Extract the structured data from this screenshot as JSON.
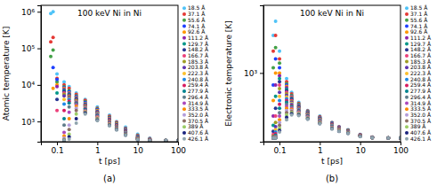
{
  "chart_data": [
    {
      "type": "scatter",
      "title": "100 keV Ni in Ni",
      "annotation": "(a)",
      "x_label": "t [ps]",
      "y_label": "Atomic temperature [K]",
      "log": true,
      "grid": false,
      "legend": "right",
      "marker": "circle",
      "xlim": [
        0.04,
        100
      ],
      "xticks": [
        0.1,
        1,
        10,
        100
      ],
      "ylim": [
        280,
        1500000
      ],
      "yticks": [
        {
          "value": 1000,
          "label": "10³"
        },
        {
          "value": 10000,
          "label": "10⁴"
        },
        {
          "value": 100000,
          "label": "10⁵"
        },
        {
          "value": 1000000,
          "label": "10⁶"
        }
      ],
      "x": [
        0.07,
        0.08,
        0.1,
        0.15,
        0.2,
        0.3,
        0.5,
        1,
        2,
        3,
        5,
        10,
        20,
        50,
        100
      ],
      "series": [
        {
          "name": "18.5 Å",
          "color": "#4fc3f7",
          "values": [
            900000,
            1000000,
            20000,
            12000,
            9000,
            6000,
            4000,
            2500,
            1500,
            1000,
            700,
            450,
            350,
            310,
            300
          ]
        },
        {
          "name": "37.1 Å",
          "color": "#e53935",
          "values": [
            150000,
            200000,
            15000,
            10000,
            8000,
            5500,
            3800,
            2300,
            1400,
            950,
            650,
            420,
            340,
            305,
            300
          ]
        },
        {
          "name": "55.6 Å",
          "color": "#43a047",
          "values": [
            60000,
            90000,
            12000,
            9000,
            7000,
            5000,
            3500,
            2200,
            1300,
            900,
            620,
            400,
            330,
            303,
            300
          ]
        },
        {
          "name": "74.1 Å",
          "color": "#1e40ff",
          "values": [
            null,
            30000,
            14000,
            8500,
            6500,
            4800,
            3300,
            2100,
            1250,
            880,
            600,
            390,
            325,
            302,
            300
          ]
        },
        {
          "name": "92.6 Å",
          "color": "#ff9800",
          "values": [
            null,
            8000,
            10000,
            8000,
            6000,
            4500,
            3100,
            2000,
            1200,
            850,
            580,
            380,
            320,
            301,
            300
          ]
        },
        {
          "name": "111.2 Å",
          "color": "#8e24aa",
          "values": [
            null,
            null,
            9000,
            7500,
            5800,
            4300,
            3000,
            1900,
            1150,
            820,
            560,
            370,
            318,
            301,
            300
          ]
        },
        {
          "name": "129.7 Å",
          "color": "#009688",
          "values": [
            null,
            null,
            6000,
            7000,
            5500,
            4100,
            2900,
            1850,
            1100,
            800,
            540,
            365,
            315,
            300,
            300
          ]
        },
        {
          "name": "148.2 Å",
          "color": "#283593",
          "values": [
            null,
            null,
            4000,
            6500,
            5200,
            4000,
            2800,
            1800,
            1080,
            780,
            530,
            360,
            312,
            300,
            300
          ]
        },
        {
          "name": "166.7 Å",
          "color": "#ec407a",
          "values": [
            null,
            null,
            2000,
            6000,
            5000,
            3800,
            2700,
            1750,
            1050,
            760,
            520,
            355,
            310,
            300,
            300
          ]
        },
        {
          "name": "185.3 Å",
          "color": "#9e9d24",
          "values": [
            null,
            null,
            null,
            5500,
            4800,
            3700,
            2600,
            1700,
            1020,
            740,
            510,
            350,
            308,
            300,
            300
          ]
        },
        {
          "name": "203.8 Å",
          "color": "#5e35b1",
          "values": [
            null,
            null,
            null,
            5000,
            4500,
            3500,
            2500,
            1650,
            1000,
            720,
            500,
            345,
            306,
            300,
            300
          ]
        },
        {
          "name": "222.3 Å",
          "color": "#fbc02d",
          "values": [
            null,
            null,
            null,
            4000,
            4200,
            3400,
            2400,
            1600,
            980,
            700,
            490,
            340,
            305,
            300,
            300
          ]
        },
        {
          "name": "240.8 Å",
          "color": "#1e88e5",
          "values": [
            null,
            null,
            null,
            3000,
            4000,
            3300,
            2300,
            1550,
            960,
            690,
            480,
            338,
            304,
            300,
            300
          ]
        },
        {
          "name": "259.4 Å",
          "color": "#d81b60",
          "values": [
            null,
            null,
            null,
            2000,
            3600,
            3200,
            2200,
            1500,
            940,
            680,
            470,
            335,
            303,
            300,
            300
          ]
        },
        {
          "name": "277.9 Å",
          "color": "#00838f",
          "values": [
            null,
            null,
            null,
            1200,
            3200,
            3100,
            2100,
            1450,
            920,
            670,
            460,
            332,
            302,
            300,
            300
          ]
        },
        {
          "name": "296.4 Å",
          "color": "#607d8b",
          "values": [
            null,
            null,
            null,
            800,
            2500,
            3000,
            2000,
            1400,
            900,
            660,
            455,
            330,
            302,
            300,
            300
          ]
        },
        {
          "name": "314.9 Å",
          "color": "#ab47bc",
          "values": [
            null,
            null,
            null,
            500,
            1800,
            2800,
            1950,
            1350,
            880,
            650,
            450,
            328,
            301,
            300,
            300
          ]
        },
        {
          "name": "333.5 Å",
          "color": "#fb8c00",
          "values": [
            null,
            null,
            null,
            400,
            1200,
            2600,
            1900,
            1300,
            860,
            640,
            445,
            326,
            301,
            300,
            300
          ]
        },
        {
          "name": "352.0 Å",
          "color": "#b39ddb",
          "values": [
            null,
            null,
            null,
            350,
            800,
            2300,
            1850,
            1250,
            840,
            630,
            440,
            324,
            301,
            300,
            300
          ]
        },
        {
          "name": "370.5 Å",
          "color": "#8d6e63",
          "values": [
            null,
            null,
            null,
            320,
            600,
            2000,
            1800,
            1200,
            820,
            620,
            435,
            322,
            300,
            300,
            300
          ]
        },
        {
          "name": "389 Å",
          "color": "#9ccc65",
          "values": [
            null,
            null,
            null,
            310,
            450,
            1600,
            1750,
            1150,
            800,
            610,
            430,
            320,
            300,
            300,
            300
          ]
        },
        {
          "name": "407.6 Å",
          "color": "#1a237e",
          "values": [
            null,
            null,
            null,
            300,
            380,
            1200,
            1700,
            1100,
            780,
            600,
            425,
            318,
            300,
            300,
            300
          ]
        },
        {
          "name": "426.1 Å",
          "color": "#90a4ae",
          "values": [
            null,
            null,
            null,
            300,
            330,
            900,
            1600,
            1050,
            760,
            590,
            420,
            316,
            300,
            300,
            300
          ]
        }
      ]
    },
    {
      "type": "scatter",
      "title": "100 keV Ni in Ni",
      "annotation": "(b)",
      "x_label": "t [ps]",
      "y_label": "Electronic temperature [K]",
      "log": true,
      "grid": false,
      "legend": "right",
      "marker": "circle",
      "xlim": [
        0.04,
        100
      ],
      "xticks": [
        0.1,
        1,
        10,
        100
      ],
      "ylim": [
        280,
        3500
      ],
      "yticks": [
        {
          "value": 1000,
          "label": "10³"
        }
      ],
      "x": [
        0.07,
        0.08,
        0.1,
        0.15,
        0.2,
        0.3,
        0.5,
        1,
        2,
        3,
        5,
        10,
        20,
        50,
        100
      ],
      "series": [
        {
          "name": "18.5 Å",
          "color": "#4fc3f7",
          "values": [
            2000,
            2600,
            1500,
            900,
            700,
            580,
            500,
            450,
            400,
            370,
            350,
            320,
            305,
            300,
            300
          ]
        },
        {
          "name": "37.1 Å",
          "color": "#e53935",
          "values": [
            1500,
            2000,
            1300,
            850,
            680,
            570,
            495,
            445,
            398,
            368,
            348,
            319,
            305,
            300,
            300
          ]
        },
        {
          "name": "55.6 Å",
          "color": "#43a047",
          "values": [
            1100,
            1600,
            1200,
            820,
            660,
            560,
            490,
            440,
            395,
            366,
            346,
            318,
            304,
            300,
            300
          ]
        },
        {
          "name": "74.1 Å",
          "color": "#1e40ff",
          "values": [
            800,
            1300,
            1100,
            800,
            650,
            550,
            485,
            438,
            393,
            365,
            345,
            318,
            304,
            300,
            300
          ]
        },
        {
          "name": "92.6 Å",
          "color": "#ff9800",
          "values": [
            600,
            1000,
            1000,
            780,
            640,
            545,
            480,
            435,
            390,
            363,
            344,
            317,
            304,
            300,
            300
          ]
        },
        {
          "name": "111.2 Å",
          "color": "#8e24aa",
          "values": [
            450,
            800,
            950,
            760,
            630,
            540,
            478,
            432,
            388,
            362,
            343,
            317,
            304,
            300,
            300
          ]
        },
        {
          "name": "129.7 Å",
          "color": "#009688",
          "values": [
            380,
            650,
            900,
            740,
            620,
            535,
            475,
            430,
            386,
            360,
            342,
            316,
            303,
            300,
            300
          ]
        },
        {
          "name": "148.2 Å",
          "color": "#283593",
          "values": [
            340,
            520,
            850,
            720,
            610,
            530,
            472,
            428,
            384,
            359,
            341,
            316,
            303,
            300,
            300
          ]
        },
        {
          "name": "166.7 Å",
          "color": "#ec407a",
          "values": [
            320,
            450,
            800,
            700,
            600,
            525,
            470,
            425,
            382,
            358,
            340,
            315,
            303,
            300,
            300
          ]
        },
        {
          "name": "185.3 Å",
          "color": "#9e9d24",
          "values": [
            310,
            400,
            750,
            680,
            590,
            520,
            467,
            422,
            380,
            356,
            339,
            315,
            303,
            300,
            300
          ]
        },
        {
          "name": "203.8 Å",
          "color": "#5e35b1",
          "values": [
            305,
            370,
            700,
            660,
            580,
            515,
            464,
            420,
            378,
            355,
            338,
            314,
            303,
            300,
            300
          ]
        },
        {
          "name": "222.3 Å",
          "color": "#fbc02d",
          "values": [
            302,
            350,
            650,
            640,
            570,
            510,
            460,
            418,
            376,
            354,
            337,
            314,
            302,
            300,
            300
          ]
        },
        {
          "name": "240.8 Å",
          "color": "#1e88e5",
          "values": [
            300,
            335,
            600,
            620,
            560,
            505,
            457,
            415,
            374,
            352,
            336,
            313,
            302,
            300,
            300
          ]
        },
        {
          "name": "259.4 Å",
          "color": "#d81b60",
          "values": [
            300,
            325,
            560,
            600,
            550,
            500,
            454,
            412,
            372,
            351,
            335,
            313,
            302,
            300,
            300
          ]
        },
        {
          "name": "277.9 Å",
          "color": "#00838f",
          "values": [
            300,
            315,
            520,
            580,
            540,
            495,
            450,
            410,
            370,
            350,
            334,
            312,
            302,
            300,
            300
          ]
        },
        {
          "name": "296.4 Å",
          "color": "#607d8b",
          "values": [
            300,
            310,
            480,
            560,
            530,
            490,
            447,
            408,
            368,
            348,
            333,
            312,
            302,
            300,
            300
          ]
        },
        {
          "name": "314.9 Å",
          "color": "#ab47bc",
          "values": [
            300,
            305,
            450,
            540,
            520,
            485,
            444,
            405,
            366,
            347,
            332,
            311,
            302,
            300,
            300
          ]
        },
        {
          "name": "333.5 Å",
          "color": "#fb8c00",
          "values": [
            300,
            303,
            420,
            520,
            510,
            480,
            440,
            402,
            364,
            346,
            331,
            311,
            301,
            300,
            300
          ]
        },
        {
          "name": "352.0 Å",
          "color": "#b39ddb",
          "values": [
            300,
            302,
            400,
            500,
            500,
            475,
            437,
            400,
            362,
            344,
            330,
            310,
            301,
            300,
            300
          ]
        },
        {
          "name": "370.5 Å",
          "color": "#8d6e63",
          "values": [
            300,
            301,
            380,
            480,
            490,
            470,
            434,
            398,
            360,
            343,
            329,
            310,
            301,
            300,
            300
          ]
        },
        {
          "name": "389 Å",
          "color": "#9ccc65",
          "values": [
            300,
            300,
            360,
            460,
            480,
            465,
            430,
            395,
            358,
            342,
            328,
            309,
            301,
            300,
            300
          ]
        },
        {
          "name": "407.6 Å",
          "color": "#1a237e",
          "values": [
            300,
            300,
            345,
            440,
            470,
            460,
            427,
            392,
            356,
            340,
            327,
            309,
            301,
            300,
            300
          ]
        },
        {
          "name": "426.1 Å",
          "color": "#90a4ae",
          "values": [
            300,
            300,
            335,
            420,
            460,
            455,
            424,
            390,
            354,
            339,
            326,
            308,
            301,
            300,
            300
          ]
        }
      ]
    }
  ]
}
